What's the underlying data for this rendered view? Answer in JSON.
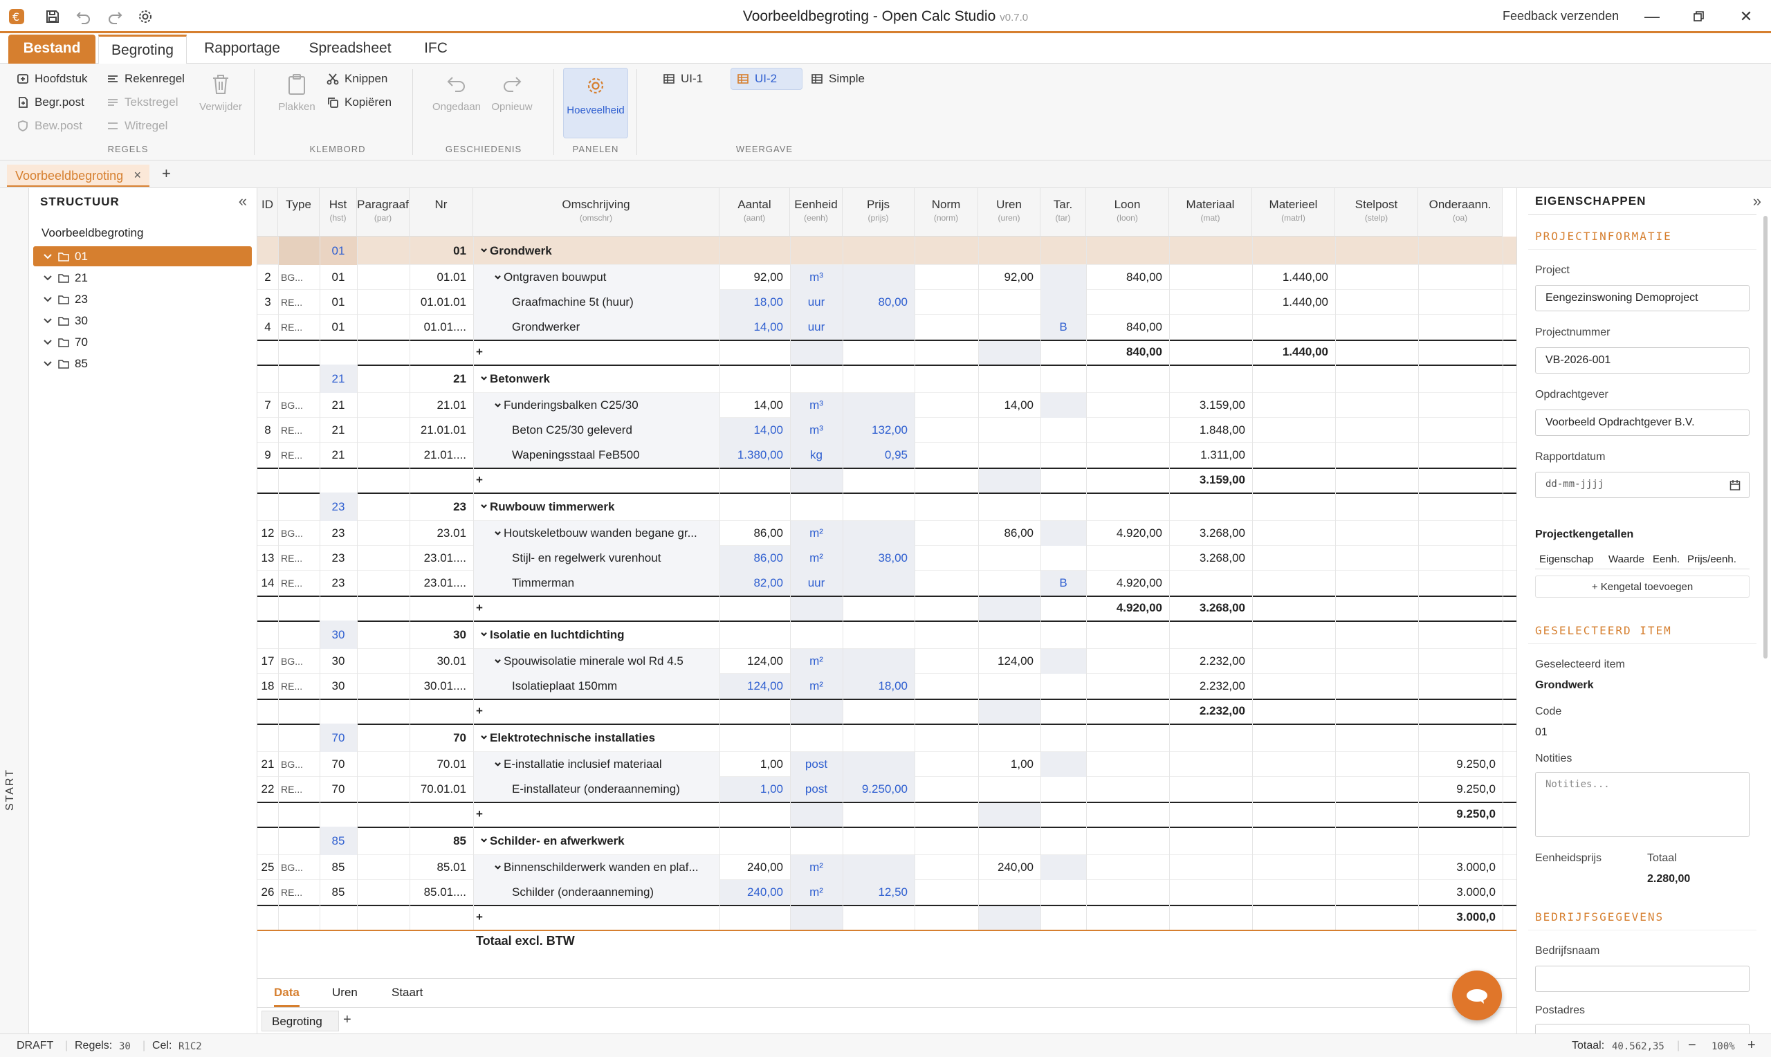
{
  "app": {
    "title": "Voorbeeldbegroting - Open Calc Studio",
    "version": "v0.7.0",
    "feedback": "Feedback verzenden"
  },
  "menu": {
    "tabs": [
      "Bestand",
      "Begroting",
      "Rapportage",
      "Spreadsheet",
      "IFC"
    ]
  },
  "ribbon": {
    "regels": {
      "label": "REGELS",
      "hoofdstuk": "Hoofdstuk",
      "begrpost": "Begr.post",
      "bewpost": "Bew.post",
      "rekenregel": "Rekenregel",
      "tekstregel": "Tekstregel",
      "witregel": "Witregel",
      "verwijder": "Verwijder"
    },
    "klembord": {
      "label": "KLEMBORD",
      "plakken": "Plakken",
      "knippen": "Knippen",
      "kopieren": "Kopiëren"
    },
    "geschiedenis": {
      "label": "GESCHIEDENIS",
      "ongedaan": "Ongedaan",
      "opnieuw": "Opnieuw"
    },
    "panelen": {
      "label": "PANELEN",
      "hoeveelheid": "Hoeveelheid"
    },
    "weergave": {
      "label": "WEERGAVE",
      "ui1": "UI-1",
      "ui2": "UI-2",
      "simple": "Simple"
    }
  },
  "doc_tab": {
    "name": "Voorbeeldbegroting",
    "close": "×",
    "add": "+"
  },
  "side": {
    "start": "START"
  },
  "tree": {
    "title": "STRUCTUUR",
    "root": "Voorbeeldbegroting",
    "nodes": [
      "01",
      "21",
      "23",
      "30",
      "70",
      "85"
    ]
  },
  "grid": {
    "headers": [
      {
        "t": "ID",
        "s": ""
      },
      {
        "t": "Type",
        "s": ""
      },
      {
        "t": "Hst",
        "s": "(hst)"
      },
      {
        "t": "Paragraaf",
        "s": "(par)"
      },
      {
        "t": "Nr",
        "s": ""
      },
      {
        "t": "Omschrijving",
        "s": "(omschr)"
      },
      {
        "t": "Aantal",
        "s": "(aant)"
      },
      {
        "t": "Eenheid",
        "s": "(eenh)"
      },
      {
        "t": "Prijs",
        "s": "(prijs)"
      },
      {
        "t": "Norm",
        "s": "(norm)"
      },
      {
        "t": "Uren",
        "s": "(uren)"
      },
      {
        "t": "Tar.",
        "s": "(tar)"
      },
      {
        "t": "Loon",
        "s": "(loon)"
      },
      {
        "t": "Materiaal",
        "s": "(mat)"
      },
      {
        "t": "Materieel",
        "s": "(matrl)"
      },
      {
        "t": "Stelpost",
        "s": "(stelp)"
      },
      {
        "t": "Onderaann.",
        "s": "(oa)"
      }
    ],
    "rows": [
      {
        "kind": "chapter",
        "hst": "01",
        "nr": "01",
        "desc": "Grondwerk",
        "selected": true
      },
      {
        "kind": "bg",
        "id": "2",
        "type": "BG...",
        "hst": "01",
        "nr": "01.01",
        "desc": "Ontgraven bouwput",
        "aant": "92,00",
        "eenh": "m³",
        "uren": "92,00",
        "loon": "840,00",
        "matrl": "1.440,00"
      },
      {
        "kind": "re",
        "id": "3",
        "type": "RE...",
        "hst": "01",
        "nr": "01.01.01",
        "desc": "Graafmachine 5t (huur)",
        "aant": "18,00",
        "eenh": "uur",
        "prijs": "80,00",
        "matrl": "1.440,00"
      },
      {
        "kind": "re",
        "id": "4",
        "type": "RE...",
        "hst": "01",
        "nr": "01.01....",
        "desc": "Grondwerker",
        "aant": "14,00",
        "eenh": "uur",
        "tar": "B",
        "loon": "840,00"
      },
      {
        "kind": "total",
        "loon": "840,00",
        "matrl": "1.440,00"
      },
      {
        "kind": "chapter",
        "hst": "21",
        "nr": "21",
        "desc": "Betonwerk"
      },
      {
        "kind": "bg",
        "id": "7",
        "type": "BG...",
        "hst": "21",
        "nr": "21.01",
        "desc": "Funderingsbalken C25/30",
        "aant": "14,00",
        "eenh": "m³",
        "uren": "14,00",
        "mat": "3.159,00"
      },
      {
        "kind": "re",
        "id": "8",
        "type": "RE...",
        "hst": "21",
        "nr": "21.01.01",
        "desc": "Beton C25/30 geleverd",
        "aant": "14,00",
        "eenh": "m³",
        "prijs": "132,00",
        "mat": "1.848,00"
      },
      {
        "kind": "re",
        "id": "9",
        "type": "RE...",
        "hst": "21",
        "nr": "21.01....",
        "desc": "Wapeningsstaal FeB500",
        "aant": "1.380,00",
        "eenh": "kg",
        "prijs": "0,95",
        "mat": "1.311,00"
      },
      {
        "kind": "total",
        "mat": "3.159,00"
      },
      {
        "kind": "chapter",
        "hst": "23",
        "nr": "23",
        "desc": "Ruwbouw timmerwerk"
      },
      {
        "kind": "bg",
        "id": "12",
        "type": "BG...",
        "hst": "23",
        "nr": "23.01",
        "desc": "Houtskeletbouw wanden begane gr...",
        "aant": "86,00",
        "eenh": "m²",
        "uren": "86,00",
        "loon": "4.920,00",
        "mat": "3.268,00"
      },
      {
        "kind": "re",
        "id": "13",
        "type": "RE...",
        "hst": "23",
        "nr": "23.01....",
        "desc": "Stijl- en regelwerk vurenhout",
        "aant": "86,00",
        "eenh": "m²",
        "prijs": "38,00",
        "mat": "3.268,00"
      },
      {
        "kind": "re",
        "id": "14",
        "type": "RE...",
        "hst": "23",
        "nr": "23.01....",
        "desc": "Timmerman",
        "aant": "82,00",
        "eenh": "uur",
        "tar": "B",
        "loon": "4.920,00"
      },
      {
        "kind": "total",
        "loon": "4.920,00",
        "mat": "3.268,00"
      },
      {
        "kind": "chapter",
        "hst": "30",
        "nr": "30",
        "desc": "Isolatie en luchtdichting"
      },
      {
        "kind": "bg",
        "id": "17",
        "type": "BG...",
        "hst": "30",
        "nr": "30.01",
        "desc": "Spouwisolatie minerale wol Rd 4.5",
        "aant": "124,00",
        "eenh": "m²",
        "uren": "124,00",
        "mat": "2.232,00"
      },
      {
        "kind": "re",
        "id": "18",
        "type": "RE...",
        "hst": "30",
        "nr": "30.01....",
        "desc": "Isolatieplaat 150mm",
        "aant": "124,00",
        "eenh": "m²",
        "prijs": "18,00",
        "mat": "2.232,00"
      },
      {
        "kind": "total",
        "mat": "2.232,00"
      },
      {
        "kind": "chapter",
        "hst": "70",
        "nr": "70",
        "desc": "Elektrotechnische installaties"
      },
      {
        "kind": "bg",
        "id": "21",
        "type": "BG...",
        "hst": "70",
        "nr": "70.01",
        "desc": "E-installatie inclusief materiaal",
        "aant": "1,00",
        "eenh": "post",
        "uren": "1,00",
        "oa": "9.250,0"
      },
      {
        "kind": "re",
        "id": "22",
        "type": "RE...",
        "hst": "70",
        "nr": "70.01.01",
        "desc": "E-installateur (onderaanneming)",
        "aant": "1,00",
        "eenh": "post",
        "prijs": "9.250,00",
        "oa": "9.250,0"
      },
      {
        "kind": "total",
        "oa": "9.250,0"
      },
      {
        "kind": "chapter",
        "hst": "85",
        "nr": "85",
        "desc": "Schilder- en afwerkwerk"
      },
      {
        "kind": "bg",
        "id": "25",
        "type": "BG...",
        "hst": "85",
        "nr": "85.01",
        "desc": "Binnenschilderwerk wanden en plaf...",
        "aant": "240,00",
        "eenh": "m²",
        "uren": "240,00",
        "oa": "3.000,0"
      },
      {
        "kind": "re",
        "id": "26",
        "type": "RE...",
        "hst": "85",
        "nr": "85.01....",
        "desc": "Schilder (onderaanneming)",
        "aant": "240,00",
        "eenh": "m²",
        "prijs": "12,50",
        "oa": "3.000,0"
      },
      {
        "kind": "total",
        "oa": "3.000,0"
      }
    ],
    "total_label": "Totaal excl. BTW",
    "plus": "+"
  },
  "bottom": {
    "view_tabs": [
      "Data",
      "Uren",
      "Staart"
    ],
    "sheet": "Begroting",
    "add": "+"
  },
  "props": {
    "title": "EIGENSCHAPPEN",
    "sec_project": "PROJECTINFORMATIE",
    "project_label": "Project",
    "project": "Eengezinswoning Demoproject",
    "nummer_label": "Projectnummer",
    "nummer": "VB-2026-001",
    "opdracht_label": "Opdrachtgever",
    "opdracht": "Voorbeeld Opdrachtgever B.V.",
    "datum_label": "Rapportdatum",
    "datum_placeholder": "dd-mm-jjjj",
    "kengetallen": "Projectkengetallen",
    "k_cols": [
      "Eigenschap",
      "Waarde",
      "Eenh.",
      "Prijs/eenh."
    ],
    "k_add": "+ Kengetal toevoegen",
    "sec_selected": "GESELECTEERD ITEM",
    "sel_label": "Geselecteerd item",
    "sel": "Grondwerk",
    "code_label": "Code",
    "code": "01",
    "notes_label": "Notities",
    "notes_placeholder": "Notities...",
    "eprijs_label": "Eenheidsprijs",
    "totaal_label": "Totaal",
    "totaal": "2.280,00",
    "sec_bedrijf": "BEDRIJFSGEGEVENS",
    "bedrijf_label": "Bedrijfsnaam",
    "postadres_label": "Postadres"
  },
  "status": {
    "mode": "DRAFT",
    "regels_label": "Regels:",
    "regels": "30",
    "cel_label": "Cel:",
    "cel": "R1C2",
    "totaal_label": "Totaal:",
    "totaal": "40.562,35",
    "zoom": "100%",
    "minus": "−",
    "plus": "+"
  },
  "colors": {
    "accent": "#d67f2f",
    "blue": "#2f5fd0"
  }
}
